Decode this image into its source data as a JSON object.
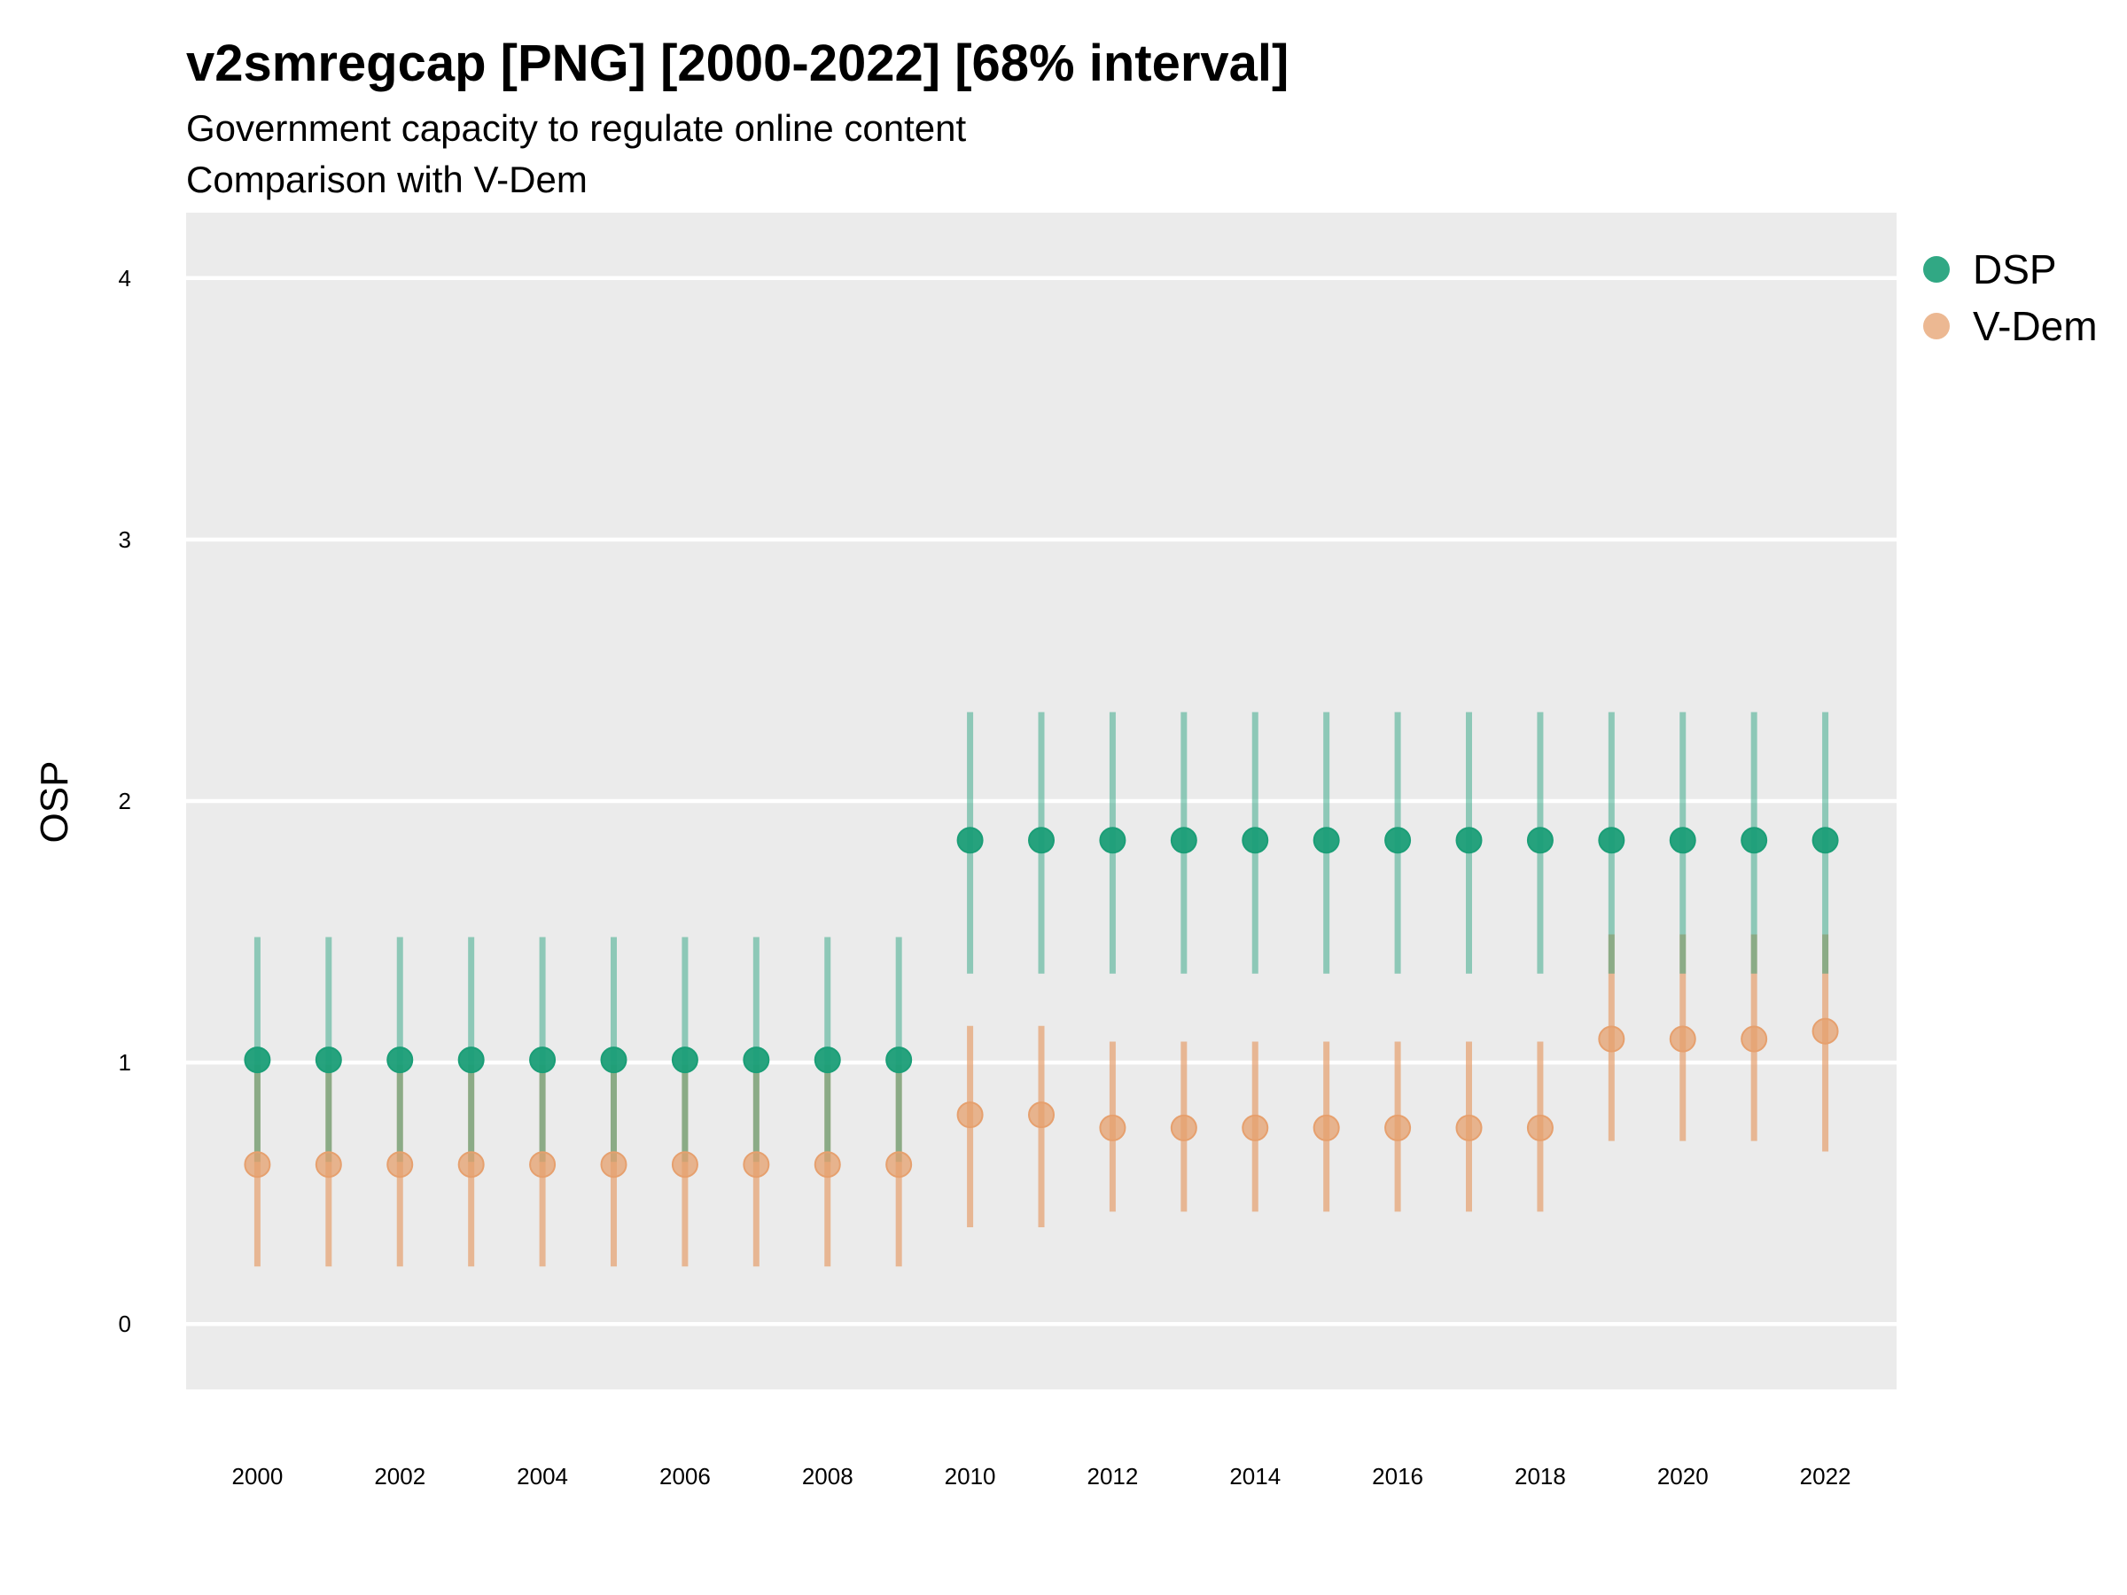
{
  "title": "v2smregcap [PNG] [2000-2022] [68% interval]",
  "subtitle_line1": "Government capacity to regulate online content",
  "subtitle_line2": "Comparison with V-Dem",
  "legend": [
    {
      "name": "DSP",
      "color": "#1b9e77"
    },
    {
      "name": "V-Dem",
      "color": "#e6a06e"
    }
  ],
  "chart_data": {
    "type": "scatter",
    "title": "v2smregcap [PNG] [2000-2022] [68% interval]",
    "xlabel": "",
    "ylabel": "OSP",
    "ylim": [
      -0.25,
      4.25
    ],
    "xlim": [
      1999.0,
      2023.0
    ],
    "y_ticks": [
      0,
      1,
      2,
      3,
      4
    ],
    "x_ticks": [
      2000,
      2002,
      2004,
      2006,
      2008,
      2010,
      2012,
      2014,
      2016,
      2018,
      2020,
      2022
    ],
    "grid": true,
    "legend_position": "right",
    "series": [
      {
        "name": "DSP",
        "color": "#1b9e77",
        "x": [
          2000,
          2001,
          2002,
          2003,
          2004,
          2005,
          2006,
          2007,
          2008,
          2009,
          2010,
          2011,
          2012,
          2013,
          2014,
          2015,
          2016,
          2017,
          2018,
          2019,
          2020,
          2021,
          2022
        ],
        "y": [
          1.01,
          1.01,
          1.01,
          1.01,
          1.01,
          1.01,
          1.01,
          1.01,
          1.01,
          1.01,
          1.85,
          1.85,
          1.85,
          1.85,
          1.85,
          1.85,
          1.85,
          1.85,
          1.85,
          1.85,
          1.85,
          1.85,
          1.85
        ],
        "lower": [
          0.62,
          0.62,
          0.62,
          0.62,
          0.62,
          0.62,
          0.62,
          0.62,
          0.62,
          0.62,
          1.34,
          1.34,
          1.34,
          1.34,
          1.34,
          1.34,
          1.34,
          1.34,
          1.34,
          1.34,
          1.34,
          1.34,
          1.34
        ],
        "upper": [
          1.48,
          1.48,
          1.48,
          1.48,
          1.48,
          1.48,
          1.48,
          1.48,
          1.48,
          1.48,
          2.34,
          2.34,
          2.34,
          2.34,
          2.34,
          2.34,
          2.34,
          2.34,
          2.34,
          2.34,
          2.34,
          2.34,
          2.34
        ]
      },
      {
        "name": "V-Dem",
        "color": "#e6a06e",
        "x": [
          2000,
          2001,
          2002,
          2003,
          2004,
          2005,
          2006,
          2007,
          2008,
          2009,
          2010,
          2011,
          2012,
          2013,
          2014,
          2015,
          2016,
          2017,
          2018,
          2019,
          2020,
          2021,
          2022
        ],
        "y": [
          0.61,
          0.61,
          0.61,
          0.61,
          0.61,
          0.61,
          0.61,
          0.61,
          0.61,
          0.61,
          0.8,
          0.8,
          0.75,
          0.75,
          0.75,
          0.75,
          0.75,
          0.75,
          0.75,
          1.09,
          1.09,
          1.09,
          1.12
        ],
        "lower": [
          0.22,
          0.22,
          0.22,
          0.22,
          0.22,
          0.22,
          0.22,
          0.22,
          0.22,
          0.22,
          0.37,
          0.37,
          0.43,
          0.43,
          0.43,
          0.43,
          0.43,
          0.43,
          0.43,
          0.7,
          0.7,
          0.7,
          0.66
        ],
        "upper": [
          0.99,
          0.99,
          0.99,
          0.99,
          0.99,
          0.99,
          0.99,
          0.99,
          0.99,
          0.99,
          1.14,
          1.14,
          1.08,
          1.08,
          1.08,
          1.08,
          1.08,
          1.08,
          1.08,
          1.49,
          1.49,
          1.49,
          1.49
        ]
      }
    ]
  }
}
